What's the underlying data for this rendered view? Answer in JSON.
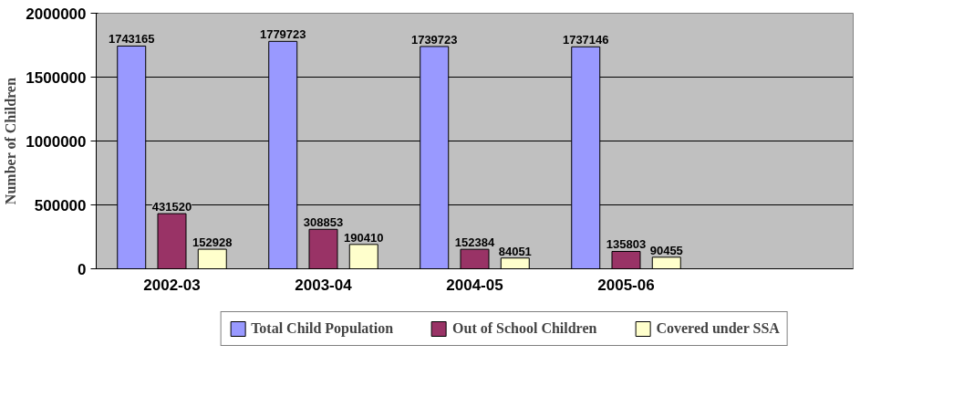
{
  "chart_data": {
    "type": "bar",
    "ylabel": "Number of Children",
    "categories": [
      "2002-03",
      "2003-04",
      "2004-05",
      "2005-06",
      null
    ],
    "series": [
      {
        "name": "Total Child Population",
        "color": "#9999ff",
        "values": [
          1743165,
          1779723,
          1739723,
          1737146,
          null
        ]
      },
      {
        "name": "Out of School Children",
        "color": "#993366",
        "values": [
          431520,
          308853,
          152384,
          135803,
          null
        ]
      },
      {
        "name": "Covered under SSA",
        "color": "#ffffcc",
        "values": [
          152928,
          190410,
          84051,
          90455,
          null
        ]
      }
    ],
    "ylim": [
      0,
      2000000
    ],
    "yticks": [
      0,
      500000,
      1000000,
      1500000,
      2000000
    ],
    "grid": "y",
    "legend": "bottom",
    "data_labels": true
  }
}
